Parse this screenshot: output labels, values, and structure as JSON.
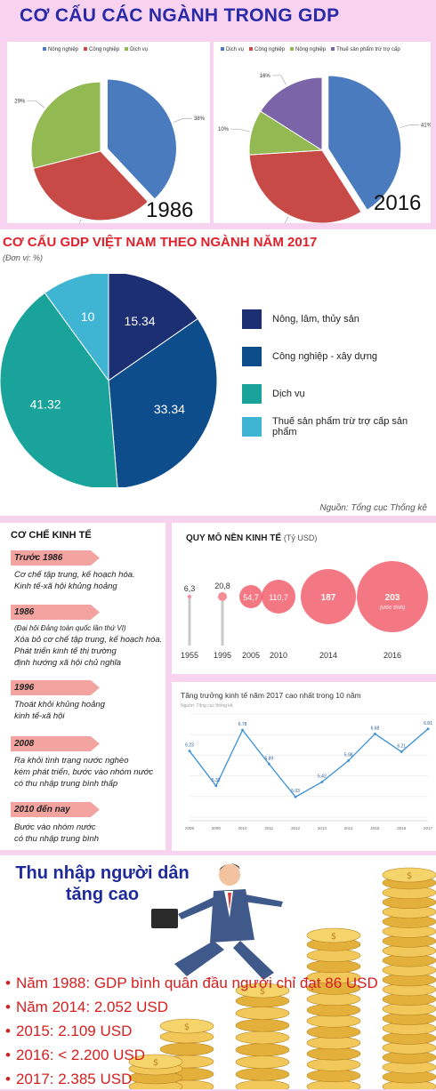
{
  "header": {
    "title": "CƠ CẤU CÁC NGÀNH TRONG GDP"
  },
  "colors": {
    "blue": "#4a7bbf",
    "red": "#c84a46",
    "green": "#93b952",
    "purple": "#7b64a8",
    "navy": "#1d2f73",
    "teal_dark": "#0d4d8c",
    "teal": "#1aa39a",
    "light_blue": "#3fb4d3"
  },
  "chart_data": [
    {
      "type": "pie",
      "title": "",
      "year_label": "1986",
      "legend": [
        "Nông nghiệp",
        "Công nghiệp",
        "Dịch vụ"
      ],
      "slices": [
        {
          "name": "Dịch vụ",
          "value": 38,
          "label": "38%"
        },
        {
          "name": "Công nghiệp",
          "value": 33,
          "label": "33%"
        },
        {
          "name": "Nông nghiệp",
          "value": 29,
          "label": "29%"
        }
      ]
    },
    {
      "type": "pie",
      "title": "",
      "year_label": "2016",
      "legend": [
        "Dịch vụ",
        "Công nghiệp",
        "Nông nghiệp",
        "Thuế sản phẩm trừ trợ cấp"
      ],
      "slices": [
        {
          "name": "Dịch vụ",
          "value": 41,
          "label": "41%"
        },
        {
          "name": "Công nghiệp",
          "value": 33,
          "label": "33%"
        },
        {
          "name": "Nông nghiệp",
          "value": 10,
          "label": "10%"
        },
        {
          "name": "Thuế sản phẩm trừ trợ cấp",
          "value": 16,
          "label": "16%"
        }
      ]
    },
    {
      "type": "pie",
      "title": "CƠ CẤU GDP VIỆT NAM THEO NGÀNH NĂM 2017",
      "unit": "(Đơn vị: %)",
      "source": "Nguồn: Tổng cục Thống kê",
      "slices": [
        {
          "name": "Nông, lâm, thủy sản",
          "value": 15.34,
          "label": "15.34"
        },
        {
          "name": "Công nghiệp - xây dựng",
          "value": 33.34,
          "label": "33.34"
        },
        {
          "name": "Dịch vụ",
          "value": 41.32,
          "label": "41.32"
        },
        {
          "name": "Thuế sản phẩm trừ trợ cấp sản phẩm",
          "value": 10,
          "label": "10"
        }
      ]
    },
    {
      "type": "scatter",
      "title": "QUY MÔ NỀN KINH TẾ",
      "unit": "(Tỷ USD)",
      "x": [
        "1955",
        "1995",
        "2005",
        "2010",
        "2014",
        "2016"
      ],
      "values": [
        6.3,
        20.8,
        54.7,
        110.7,
        187,
        203
      ],
      "labels": [
        "6,3",
        "20,8",
        "54,7",
        "110,7",
        "187",
        "203"
      ],
      "note": "(ước tính)"
    },
    {
      "type": "line",
      "title": "Tăng trưởng kinh tế năm 2017 cao nhất trong 10 năm",
      "subtitle": "Nguồn: Tổng cục thống kê",
      "x": [
        "2008",
        "2009",
        "2010",
        "2011",
        "2012",
        "2013",
        "2014",
        "2015",
        "2016",
        "2017"
      ],
      "values": [
        6.23,
        5.32,
        6.78,
        5.89,
        5.03,
        5.42,
        5.98,
        6.68,
        6.21,
        6.81
      ],
      "labels": [
        "6.23",
        "5.32",
        "6.78",
        "5.89",
        "5.03",
        "5.42",
        "5.98",
        "6.68",
        "6.21",
        "6.81"
      ],
      "ylim": [
        4.5,
        7.2
      ]
    }
  ],
  "mechanism": {
    "title": "CƠ CHẾ KINH TẾ",
    "items": [
      {
        "tag": "Trước 1986",
        "text": [
          "Cơ chế tập trung, kế hoạch hóa.",
          "Kinh tế-xã hội khủng hoảng"
        ]
      },
      {
        "tag": "1986",
        "text": [
          "(Đại hội Đảng toàn quốc lần thứ VI)",
          "Xóa bỏ cơ chế tập trung, kế hoạch hóa.",
          "Phát triển kinh tế thị trường",
          "định hướng xã hội chủ nghĩa"
        ]
      },
      {
        "tag": "1996",
        "text": [
          "Thoát khỏi khủng hoảng",
          "kinh tế-xã hội"
        ]
      },
      {
        "tag": "2008",
        "text": [
          "Ra khỏi tình trạng nước nghèo",
          "kém phát triển, bước vào nhóm nước",
          "có thu nhập trung bình thấp"
        ]
      },
      {
        "tag": "2010 đến nay",
        "text": [
          "Bước vào nhóm nước",
          "có thu nhập trung bình"
        ]
      }
    ]
  },
  "income": {
    "title_line1": "Thu nhập người dân",
    "title_line2": "tăng cao",
    "bullets": [
      "Năm 1988: GDP bình quân đầu người chỉ đạt 86 USD",
      "Năm 2014: 2.052 USD",
      "2015: 2.109 USD",
      "2016: < 2.200 USD",
      "2017: 2.385 USD"
    ]
  }
}
